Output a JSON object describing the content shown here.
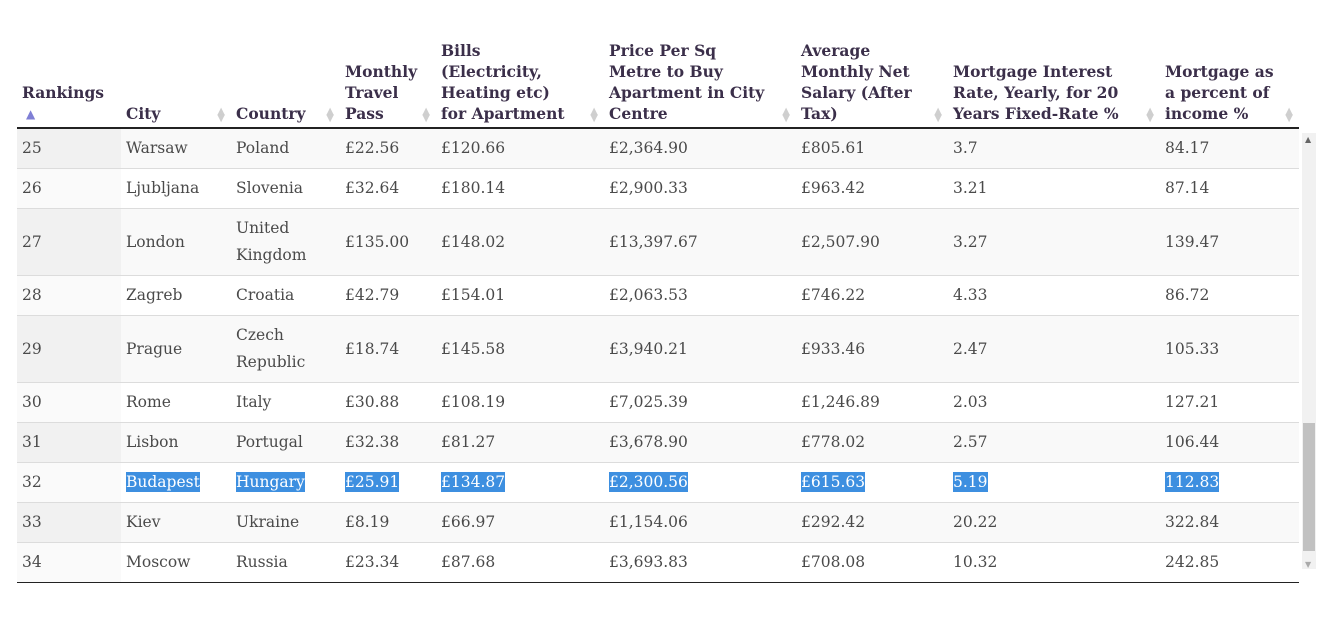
{
  "headers": [
    "Rankings",
    "City",
    "Country",
    "Monthly Travel Pass",
    "Bills (Electricity, Heating etc) for Apartment",
    "Price Per Sq Metre to Buy Apartment in City Centre",
    "Average Monthly Net Salary (After Tax)",
    "Mortgage Interest Rate, Yearly, for 20 Years Fixed-Rate %",
    "Mortgage as a percent of income %"
  ],
  "rows": [
    [
      "25",
      "Warsaw",
      "Poland",
      "£22.56",
      "£120.66",
      "£2,364.90",
      "£805.61",
      "3.7",
      "84.17"
    ],
    [
      "26",
      "Ljubljana",
      "Slovenia",
      "£32.64",
      "£180.14",
      "£2,900.33",
      "£963.42",
      "3.21",
      "87.14"
    ],
    [
      "27",
      "London",
      "United Kingdom",
      "£135.00",
      "£148.02",
      "£13,397.67",
      "£2,507.90",
      "3.27",
      "139.47"
    ],
    [
      "28",
      "Zagreb",
      "Croatia",
      "£42.79",
      "£154.01",
      "£2,063.53",
      "£746.22",
      "4.33",
      "86.72"
    ],
    [
      "29",
      "Prague",
      "Czech Republic",
      "£18.74",
      "£145.58",
      "£3,940.21",
      "£933.46",
      "2.47",
      "105.33"
    ],
    [
      "30",
      "Rome",
      "Italy",
      "£30.88",
      "£108.19",
      "£7,025.39",
      "£1,246.89",
      "2.03",
      "127.21"
    ],
    [
      "31",
      "Lisbon",
      "Portugal",
      "£32.38",
      "£81.27",
      "£3,678.90",
      "£778.02",
      "2.57",
      "106.44"
    ],
    [
      "32",
      "Budapest",
      "Hungary",
      "£25.91",
      "£134.87",
      "£2,300.56",
      "£615.63",
      "5.19",
      "112.83"
    ],
    [
      "33",
      "Kiev",
      "Ukraine",
      "£8.19",
      "£66.97",
      "£1,154.06",
      "£292.42",
      "20.22",
      "322.84"
    ],
    [
      "34",
      "Moscow",
      "Russia",
      "£23.34",
      "£87.68",
      "£3,693.83",
      "£708.08",
      "10.32",
      "242.85"
    ]
  ],
  "highlight_color": "#3d8fe0"
}
